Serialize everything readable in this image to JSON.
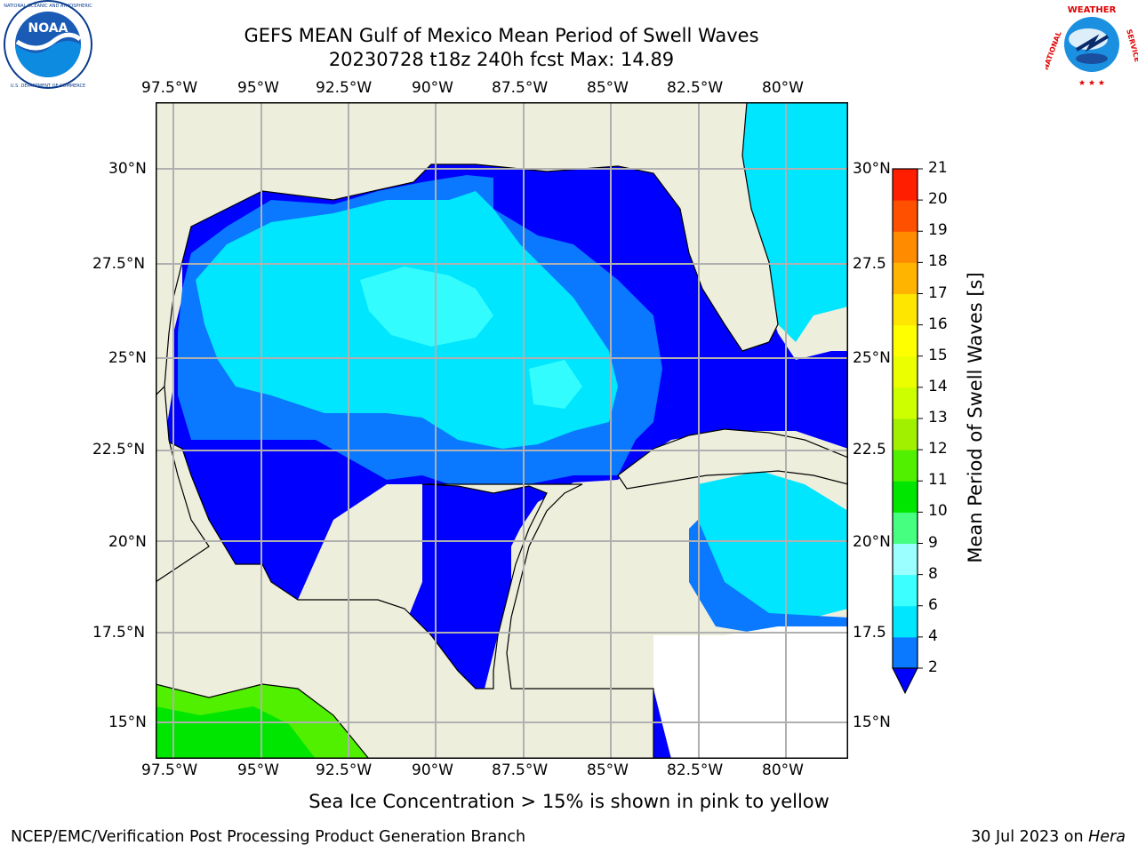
{
  "title": {
    "line1": "GEFS MEAN Gulf of Mexico Mean Period of Swell Waves",
    "line2": "20230728 t18z 240h fcst   Max: 14.89"
  },
  "logos": {
    "left": {
      "icon": "noaa-logo",
      "text": "NOAA",
      "ring_text": "NATIONAL OCEANIC AND ATMOSPHERIC ADMINISTRATION · U.S. DEPARTMENT OF COMMERCE"
    },
    "right": {
      "icon": "national-weather-service-logo",
      "ring_text": "NATIONAL WEATHER SERVICE"
    }
  },
  "map": {
    "lon_labels": [
      "97.5°W",
      "95°W",
      "92.5°W",
      "90°W",
      "87.5°W",
      "85°W",
      "82.5°W",
      "80°W"
    ],
    "lat_labels_left": [
      "30°N",
      "27.5°N",
      "25°N",
      "22.5°N",
      "20°N",
      "17.5°N",
      "15°N"
    ],
    "lat_labels_right": [
      "30°N",
      "27.5",
      "25°N",
      "22.5",
      "20°N",
      "17.5",
      "15°N"
    ],
    "land_color": "#eeeedd",
    "grid_color": "#b0b0b0"
  },
  "colorbar": {
    "label": "Mean Period of Swell Waves [s]",
    "ticks": [
      "2",
      "4",
      "6",
      "8",
      "9",
      "10",
      "11",
      "12",
      "13",
      "14",
      "15",
      "16",
      "17",
      "18",
      "19",
      "20",
      "21"
    ],
    "colors": [
      "#0000ff",
      "#0a78ff",
      "#00e6ff",
      "#3cffff",
      "#9bffff",
      "#46ff80",
      "#00e600",
      "#50f000",
      "#a0f000",
      "#cdff00",
      "#ebff00",
      "#ffff00",
      "#ffe600",
      "#ffb400",
      "#ff8c00",
      "#ff5000",
      "#ff1e00",
      "#ff0000"
    ],
    "extend": "min"
  },
  "notes": {
    "sea_ice": "Sea Ice Concentration > 15% is shown in pink to yellow"
  },
  "footer": {
    "left": "NCEP/EMC/Verification Post Processing Product Generation Branch",
    "right_date": "30 Jul 2023 on ",
    "right_host": "Hera"
  }
}
